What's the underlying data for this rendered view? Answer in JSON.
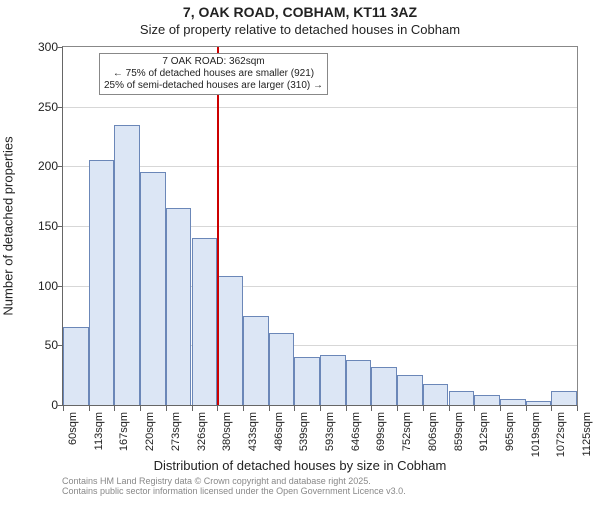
{
  "title": "7, OAK ROAD, COBHAM, KT11 3AZ",
  "subtitle": "Size of property relative to detached houses in Cobham",
  "ylabel": "Number of detached properties",
  "xlabel": "Distribution of detached houses by size in Cobham",
  "footer_line1": "Contains HM Land Registry data © Crown copyright and database right 2025.",
  "footer_line2": "Contains public sector information licensed under the Open Government Licence v3.0.",
  "chart": {
    "type": "histogram",
    "ylim": [
      0,
      300
    ],
    "yticks": [
      0,
      50,
      100,
      150,
      200,
      250,
      300
    ],
    "xtick_labels": [
      "60sqm",
      "113sqm",
      "167sqm",
      "220sqm",
      "273sqm",
      "326sqm",
      "380sqm",
      "433sqm",
      "486sqm",
      "539sqm",
      "593sqm",
      "646sqm",
      "699sqm",
      "752sqm",
      "806sqm",
      "859sqm",
      "912sqm",
      "965sqm",
      "1019sqm",
      "1072sqm",
      "1125sqm"
    ],
    "values": [
      65,
      205,
      235,
      195,
      165,
      140,
      108,
      75,
      60,
      40,
      42,
      38,
      32,
      25,
      18,
      12,
      8,
      5,
      3,
      12
    ],
    "bar_fill": "#dce6f5",
    "bar_stroke": "#6b87b8",
    "grid_color": "#d7d7d7",
    "axis_color": "#666666",
    "background": "#ffffff",
    "marker": {
      "bin_index_after": 6,
      "color": "#cc0000",
      "callout_line1": "7 OAK ROAD: 362sqm",
      "callout_line2": "← 75% of detached houses are smaller (921)",
      "callout_line3": "25% of semi-detached houses are larger (310) →"
    }
  }
}
